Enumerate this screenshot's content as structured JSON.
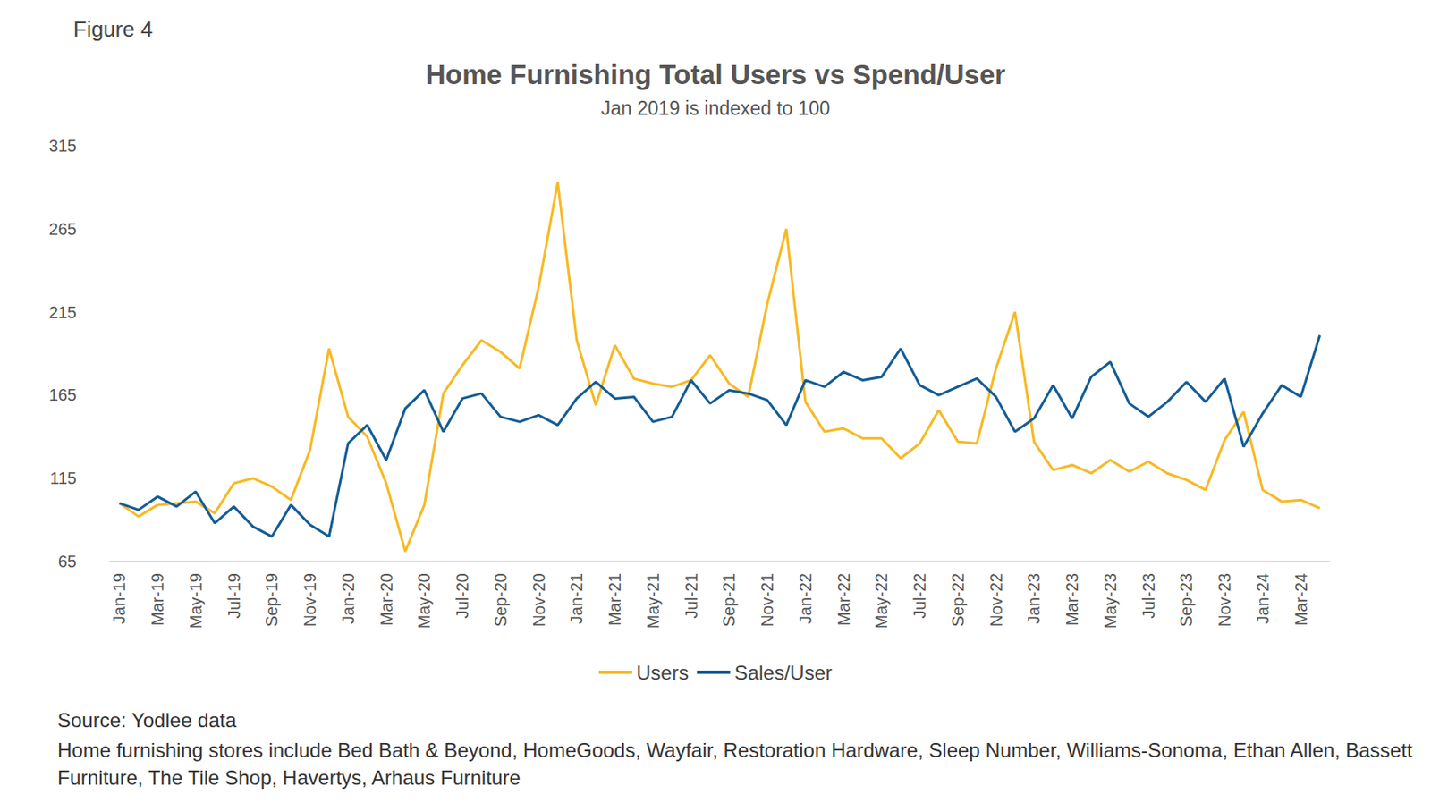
{
  "chart_data": {
    "type": "line",
    "figure_label": "Figure 4",
    "title": "Home Furnishing Total Users vs Spend/User",
    "subtitle": "Jan 2019 is indexed to 100",
    "source": "Source: Yodlee data",
    "note": "Home furnishing stores include Bed Bath & Beyond, HomeGoods, Wayfair, Restoration Hardware, Sleep Number, Williams-Sonoma, Ethan Allen, Bassett Furniture, The Tile Shop, Havertys, Arhaus Furniture",
    "categories": [
      "Jan-19",
      null,
      "Mar-19",
      null,
      "May-19",
      null,
      "Jul-19",
      null,
      "Sep-19",
      null,
      "Nov-19",
      null,
      "Jan-20",
      null,
      "Mar-20",
      null,
      "May-20",
      null,
      "Jul-20",
      null,
      "Sep-20",
      null,
      "Nov-20",
      null,
      "Jan-21",
      null,
      "Mar-21",
      null,
      "May-21",
      null,
      "Jul-21",
      null,
      "Sep-21",
      null,
      "Nov-21",
      null,
      "Jan-22",
      null,
      "Mar-22",
      null,
      "May-22",
      null,
      "Jul-22",
      null,
      "Sep-22",
      null,
      "Nov-22",
      null,
      "Jan-23",
      null,
      "Mar-23",
      null,
      "May-23",
      null,
      "Jul-23",
      null,
      "Sep-23",
      null,
      "Nov-23",
      null,
      "Jan-24",
      null,
      "Mar-24",
      null
    ],
    "series": [
      {
        "name": "Users",
        "color": "#F7B925",
        "values": [
          100,
          92,
          99,
          100,
          101,
          94,
          112,
          115,
          110,
          102,
          132,
          193,
          152,
          140,
          112,
          71,
          99,
          166,
          183,
          198,
          191,
          181,
          230,
          293,
          198,
          159,
          195,
          175,
          172,
          170,
          174,
          189,
          172,
          164,
          220,
          265,
          161,
          143,
          145,
          139,
          139,
          127,
          136,
          156,
          137,
          136,
          181,
          215,
          137,
          120,
          123,
          118,
          126,
          119,
          125,
          118,
          114,
          108,
          138,
          155,
          108,
          101,
          102,
          97
        ]
      },
      {
        "name": "Sales/User",
        "color": "#135C96",
        "values": [
          100,
          96,
          104,
          98,
          107,
          88,
          98,
          86,
          80,
          99,
          87,
          80,
          136,
          147,
          126,
          157,
          168,
          143,
          163,
          166,
          152,
          149,
          153,
          147,
          163,
          173,
          163,
          164,
          149,
          152,
          174,
          160,
          168,
          166,
          162,
          147,
          174,
          170,
          179,
          174,
          176,
          193,
          171,
          165,
          170,
          175,
          164,
          143,
          151,
          171,
          151,
          176,
          185,
          160,
          152,
          161,
          173,
          161,
          175,
          134,
          154,
          171,
          164,
          201
        ]
      }
    ],
    "ylim": [
      65,
      315
    ],
    "yticks": [
      65,
      115,
      165,
      215,
      265,
      315
    ],
    "grid": false,
    "legend": "bottom"
  }
}
